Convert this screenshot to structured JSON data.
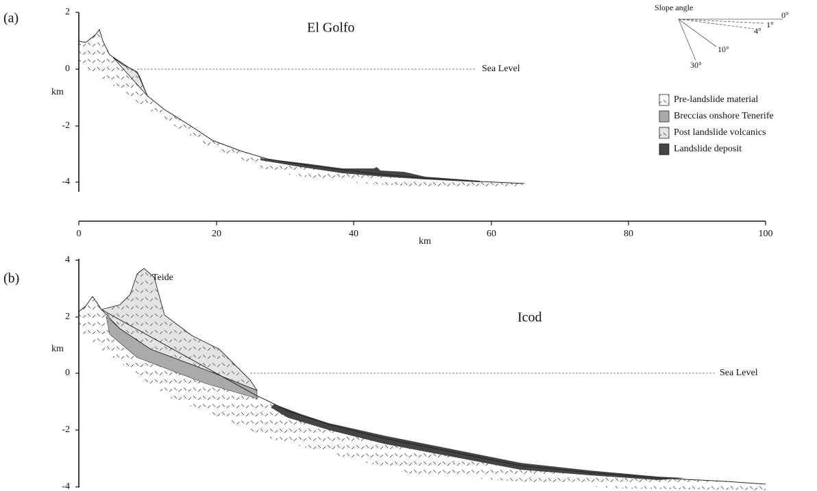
{
  "panels": [
    {
      "label": "(a)",
      "title": "El Golfo",
      "y_axis_label": "km",
      "y_ticks": [
        "2",
        "0",
        "-2",
        "-4"
      ],
      "sea_level": "Sea Level"
    },
    {
      "label": "(b)",
      "title": "Icod",
      "y_axis_label": "km",
      "y_ticks": [
        "4",
        "2",
        "0",
        "-2",
        "-4"
      ],
      "sea_level": "Sea Level",
      "peak_label": "Teide"
    }
  ],
  "x_axis": {
    "label": "km",
    "ticks": [
      "0",
      "20",
      "40",
      "60",
      "80",
      "100"
    ]
  },
  "legend": {
    "items": [
      "Pre-landslide material",
      "Breccias onshore Tenerife",
      "Post landslide volcanics",
      "Landslide deposit"
    ]
  },
  "slope_angle": {
    "title": "Slope angle",
    "angles": [
      "0°",
      "1°",
      "4°",
      "10°",
      "30°"
    ]
  }
}
